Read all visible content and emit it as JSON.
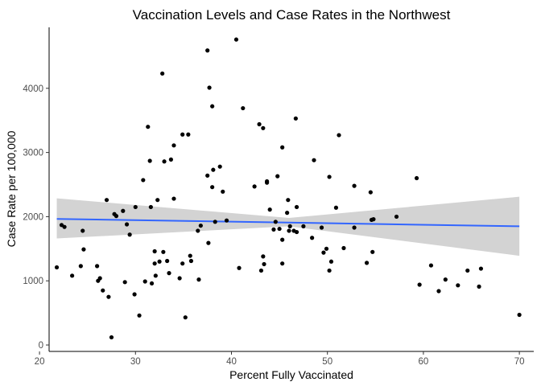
{
  "chart_data": {
    "type": "scatter",
    "title": "Vaccination Levels and Case Rates in the Northwest",
    "xlabel": "Percent Fully Vaccinated",
    "ylabel": "Case Rate per 100,000",
    "xlim": [
      21,
      71.5
    ],
    "ylim": [
      -100,
      4950
    ],
    "x_ticks": [
      20,
      30,
      40,
      50,
      60,
      70
    ],
    "y_ticks": [
      0,
      1000,
      2000,
      3000,
      4000
    ],
    "grid": false,
    "colors": {
      "points": "#000000",
      "fit_line": "#3366ff",
      "confidence_band": "#d3d3d3"
    },
    "points": [
      [
        21.8,
        1210
      ],
      [
        22.3,
        1870
      ],
      [
        22.6,
        1840
      ],
      [
        23.4,
        1080
      ],
      [
        24.3,
        1230
      ],
      [
        24.5,
        1780
      ],
      [
        24.6,
        1490
      ],
      [
        26.0,
        1230
      ],
      [
        26.1,
        1000
      ],
      [
        26.3,
        1040
      ],
      [
        26.6,
        850
      ],
      [
        27.0,
        2260
      ],
      [
        27.2,
        750
      ],
      [
        27.5,
        120
      ],
      [
        27.8,
        2040
      ],
      [
        28.0,
        2010
      ],
      [
        28.7,
        2090
      ],
      [
        28.9,
        980
      ],
      [
        29.1,
        1880
      ],
      [
        29.4,
        1720
      ],
      [
        29.9,
        790
      ],
      [
        30.0,
        2150
      ],
      [
        30.4,
        460
      ],
      [
        30.8,
        2570
      ],
      [
        31.0,
        990
      ],
      [
        31.3,
        3400
      ],
      [
        31.5,
        2870
      ],
      [
        31.6,
        2150
      ],
      [
        31.7,
        960
      ],
      [
        32.0,
        1270
      ],
      [
        32.0,
        1460
      ],
      [
        32.1,
        1080
      ],
      [
        32.3,
        2260
      ],
      [
        32.5,
        1300
      ],
      [
        32.8,
        4230
      ],
      [
        32.9,
        1450
      ],
      [
        33.0,
        2860
      ],
      [
        33.3,
        1310
      ],
      [
        33.5,
        1120
      ],
      [
        33.7,
        2890
      ],
      [
        34.0,
        3110
      ],
      [
        34.0,
        2280
      ],
      [
        34.6,
        1040
      ],
      [
        34.9,
        3280
      ],
      [
        34.9,
        1270
      ],
      [
        35.2,
        430
      ],
      [
        35.5,
        3280
      ],
      [
        35.7,
        1390
      ],
      [
        35.8,
        1310
      ],
      [
        36.5,
        1780
      ],
      [
        36.6,
        1020
      ],
      [
        36.8,
        1860
      ],
      [
        37.5,
        4590
      ],
      [
        37.5,
        2640
      ],
      [
        37.7,
        4010
      ],
      [
        37.6,
        1590
      ],
      [
        38.0,
        3720
      ],
      [
        38.0,
        2460
      ],
      [
        38.1,
        2730
      ],
      [
        38.3,
        1920
      ],
      [
        38.8,
        2780
      ],
      [
        39.1,
        2390
      ],
      [
        39.5,
        1940
      ],
      [
        40.5,
        4760
      ],
      [
        40.8,
        1200
      ],
      [
        41.2,
        3690
      ],
      [
        42.4,
        2470
      ],
      [
        42.9,
        3440
      ],
      [
        43.1,
        1160
      ],
      [
        43.3,
        3380
      ],
      [
        43.3,
        1380
      ],
      [
        43.4,
        1260
      ],
      [
        43.7,
        2550
      ],
      [
        43.7,
        2530
      ],
      [
        44.0,
        2110
      ],
      [
        44.4,
        1800
      ],
      [
        44.6,
        1920
      ],
      [
        44.8,
        2630
      ],
      [
        45.0,
        1810
      ],
      [
        45.3,
        1640
      ],
      [
        45.3,
        3080
      ],
      [
        45.3,
        1270
      ],
      [
        45.8,
        2060
      ],
      [
        45.9,
        2260
      ],
      [
        46.0,
        1780
      ],
      [
        46.1,
        1850
      ],
      [
        46.5,
        1780
      ],
      [
        46.7,
        3530
      ],
      [
        46.8,
        1760
      ],
      [
        46.8,
        2150
      ],
      [
        47.5,
        1850
      ],
      [
        48.4,
        1670
      ],
      [
        48.6,
        2880
      ],
      [
        49.4,
        1830
      ],
      [
        49.6,
        1440
      ],
      [
        49.9,
        1500
      ],
      [
        50.2,
        1160
      ],
      [
        50.2,
        2620
      ],
      [
        50.4,
        1300
      ],
      [
        50.9,
        2140
      ],
      [
        51.2,
        3270
      ],
      [
        51.7,
        1510
      ],
      [
        52.8,
        2480
      ],
      [
        52.8,
        1830
      ],
      [
        54.1,
        1280
      ],
      [
        54.5,
        2380
      ],
      [
        54.6,
        1950
      ],
      [
        54.7,
        1450
      ],
      [
        54.8,
        1960
      ],
      [
        57.2,
        2000
      ],
      [
        59.3,
        2600
      ],
      [
        59.6,
        940
      ],
      [
        60.8,
        1240
      ],
      [
        61.6,
        840
      ],
      [
        62.3,
        1020
      ],
      [
        63.6,
        930
      ],
      [
        64.6,
        1160
      ],
      [
        65.8,
        910
      ],
      [
        66.0,
        1190
      ],
      [
        70.0,
        470
      ]
    ],
    "fit_line": {
      "x": [
        21.8,
        70.0
      ],
      "y": [
        1965,
        1850
      ]
    },
    "confidence_band": {
      "x": [
        21.8,
        46.0,
        70.0
      ],
      "upper": [
        2285,
        1980,
        2310
      ],
      "lower": [
        1660,
        1850,
        1390
      ]
    }
  }
}
